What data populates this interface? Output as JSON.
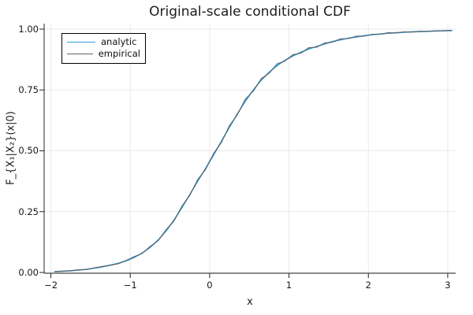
{
  "chart_data": {
    "type": "line",
    "title": "Original-scale conditional CDF",
    "xlabel": "x",
    "ylabel": "F_{X₁|X₂}(x|0)",
    "xlim": [
      -2.085,
      3.1
    ],
    "ylim": [
      -0.0032,
      1.0226
    ],
    "grid": true,
    "legend_position": "top-left",
    "xticks": {
      "values": [
        -2,
        -1,
        0,
        1,
        2,
        3
      ],
      "labels": [
        "−2",
        "−1",
        "0",
        "1",
        "2",
        "3"
      ]
    },
    "yticks": {
      "values": [
        0,
        0.25,
        0.5,
        0.75,
        1.0
      ],
      "labels": [
        "0.00",
        "0.25",
        "0.50",
        "0.75",
        "1.00"
      ]
    },
    "x": [
      -1.95,
      -1.85,
      -1.75,
      -1.65,
      -1.55,
      -1.45,
      -1.35,
      -1.25,
      -1.15,
      -1.05,
      -0.95,
      -0.85,
      -0.75,
      -0.65,
      -0.55,
      -0.45,
      -0.35,
      -0.25,
      -0.15,
      -0.05,
      0.05,
      0.15,
      0.25,
      0.35,
      0.45,
      0.55,
      0.65,
      0.75,
      0.85,
      0.95,
      1.05,
      1.15,
      1.25,
      1.35,
      1.45,
      1.55,
      1.65,
      1.75,
      1.85,
      1.95,
      2.05,
      2.15,
      2.25,
      2.35,
      2.45,
      2.55,
      2.65,
      2.75,
      2.85,
      2.95,
      3.05
    ],
    "series": [
      {
        "name": "analytic",
        "color": "#2D9FE0",
        "width": 1.6,
        "y": [
          0.004,
          0.005,
          0.007,
          0.01,
          0.013,
          0.018,
          0.023,
          0.03,
          0.038,
          0.048,
          0.062,
          0.08,
          0.103,
          0.133,
          0.17,
          0.215,
          0.266,
          0.32,
          0.375,
          0.428,
          0.483,
          0.54,
          0.597,
          0.652,
          0.704,
          0.75,
          0.79,
          0.823,
          0.85,
          0.872,
          0.89,
          0.905,
          0.918,
          0.929,
          0.939,
          0.949,
          0.956,
          0.963,
          0.968,
          0.973,
          0.977,
          0.98,
          0.983,
          0.985,
          0.987,
          0.989,
          0.99,
          0.991,
          0.992,
          0.993,
          0.994
        ]
      },
      {
        "name": "empirical",
        "color": "#606060",
        "width": 1.1,
        "y": [
          0.004,
          0.006,
          0.007,
          0.011,
          0.012,
          0.019,
          0.025,
          0.03,
          0.036,
          0.05,
          0.065,
          0.078,
          0.107,
          0.13,
          0.175,
          0.211,
          0.272,
          0.317,
          0.382,
          0.424,
          0.489,
          0.535,
          0.604,
          0.648,
          0.712,
          0.745,
          0.796,
          0.819,
          0.857,
          0.869,
          0.895,
          0.901,
          0.924,
          0.926,
          0.943,
          0.947,
          0.96,
          0.961,
          0.971,
          0.971,
          0.979,
          0.979,
          0.985,
          0.984,
          0.989,
          0.988,
          0.991,
          0.991,
          0.993,
          0.993,
          0.995
        ]
      }
    ],
    "style": {
      "grid_color": "#e9e9e9",
      "spine_color": "#242424",
      "tick_color": "#242424",
      "background": "#ffffff"
    }
  }
}
